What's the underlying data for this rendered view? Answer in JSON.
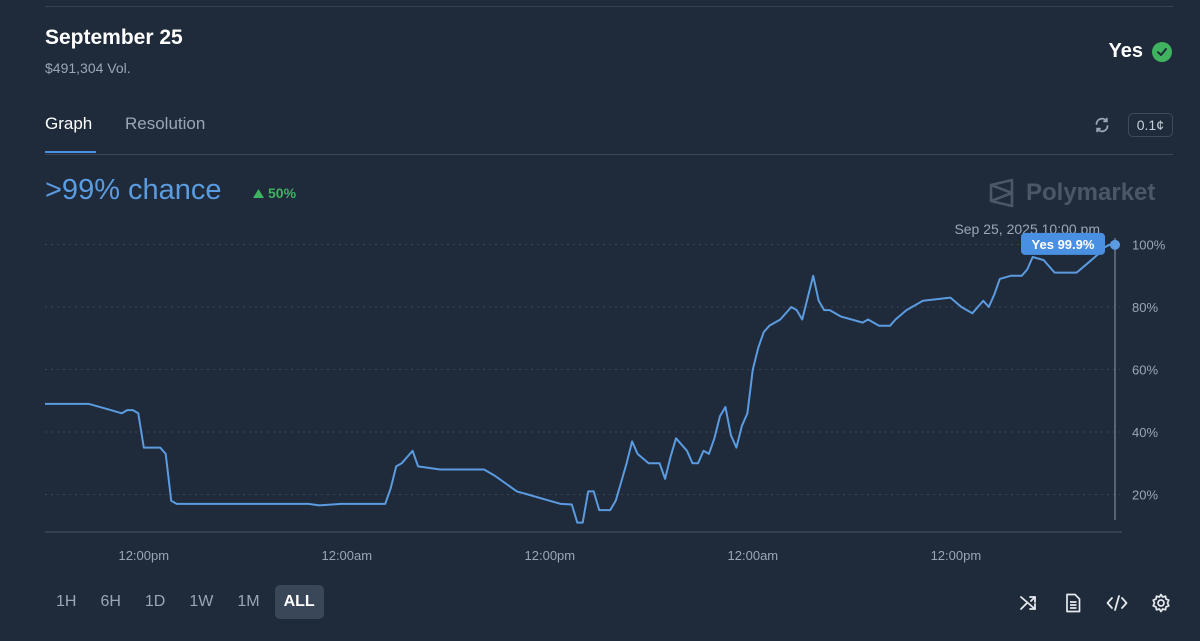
{
  "header": {
    "title": "September 25",
    "volume": "$491,304 Vol.",
    "outcome": "Yes"
  },
  "tabs": [
    {
      "label": "Graph",
      "active": true
    },
    {
      "label": "Resolution",
      "active": false
    }
  ],
  "toolbar": {
    "precision": "0.1¢"
  },
  "summary": {
    "chance": ">99% chance",
    "change": "50%"
  },
  "brand": "Polymarket",
  "colors": {
    "line": "#5b9be0",
    "up": "#3fb35f",
    "background": "#1f2a3a"
  },
  "ranges": [
    {
      "label": "1H",
      "active": false
    },
    {
      "label": "6H",
      "active": false
    },
    {
      "label": "1D",
      "active": false
    },
    {
      "label": "1W",
      "active": false
    },
    {
      "label": "1M",
      "active": false
    },
    {
      "label": "ALL",
      "active": true
    }
  ],
  "chart_data": {
    "type": "line",
    "series": [
      {
        "points": [
          [
            0,
            49
          ],
          [
            8,
            49
          ],
          [
            12,
            47
          ],
          [
            14,
            46
          ],
          [
            15,
            47
          ],
          [
            16,
            47
          ],
          [
            17,
            46
          ],
          [
            18,
            35
          ],
          [
            20,
            35
          ],
          [
            21,
            35
          ],
          [
            22,
            33
          ],
          [
            23,
            18
          ],
          [
            24,
            17
          ],
          [
            26,
            17
          ],
          [
            40,
            17
          ],
          [
            48,
            17
          ],
          [
            50,
            16.5
          ],
          [
            54,
            17
          ],
          [
            62,
            17
          ],
          [
            63,
            22
          ],
          [
            64,
            29
          ],
          [
            65,
            30
          ],
          [
            66,
            32
          ],
          [
            67,
            34
          ],
          [
            68,
            29
          ],
          [
            72,
            28
          ],
          [
            80,
            28
          ],
          [
            82,
            26
          ],
          [
            86,
            21
          ],
          [
            88,
            20
          ],
          [
            92,
            18
          ],
          [
            94,
            17
          ],
          [
            96,
            16.8
          ],
          [
            97,
            11
          ],
          [
            98,
            11
          ],
          [
            99,
            21
          ],
          [
            100,
            21
          ],
          [
            101,
            15
          ],
          [
            103,
            15
          ],
          [
            104,
            18
          ],
          [
            105,
            24
          ],
          [
            106,
            30
          ],
          [
            107,
            37
          ],
          [
            108,
            33
          ],
          [
            110,
            30
          ],
          [
            112,
            30
          ],
          [
            113,
            25
          ],
          [
            114,
            32
          ],
          [
            115,
            38
          ],
          [
            117,
            34
          ],
          [
            118,
            30
          ],
          [
            119,
            30
          ],
          [
            120,
            34
          ],
          [
            121,
            33
          ],
          [
            122,
            38
          ],
          [
            123,
            45
          ],
          [
            124,
            48
          ],
          [
            125,
            39
          ],
          [
            126,
            35
          ],
          [
            127,
            42
          ],
          [
            128,
            46
          ],
          [
            129,
            60
          ],
          [
            130,
            67
          ],
          [
            131,
            72
          ],
          [
            132,
            74
          ],
          [
            134,
            76
          ],
          [
            136,
            80
          ],
          [
            137,
            79
          ],
          [
            138,
            76
          ],
          [
            139,
            83
          ],
          [
            140,
            90
          ],
          [
            141,
            82
          ],
          [
            142,
            79
          ],
          [
            143,
            79
          ],
          [
            145,
            77
          ],
          [
            147,
            76
          ],
          [
            149,
            75
          ],
          [
            150,
            76
          ],
          [
            152,
            74
          ],
          [
            154,
            74
          ],
          [
            155,
            76
          ],
          [
            157,
            79
          ],
          [
            160,
            82
          ],
          [
            165,
            83
          ],
          [
            167,
            80
          ],
          [
            169,
            78
          ],
          [
            170,
            80
          ],
          [
            171,
            82
          ],
          [
            172,
            80
          ],
          [
            173,
            84
          ],
          [
            174,
            89
          ],
          [
            176,
            90
          ],
          [
            178,
            90
          ],
          [
            179,
            92
          ],
          [
            180,
            96
          ],
          [
            182,
            95
          ],
          [
            184,
            91
          ],
          [
            186,
            91
          ],
          [
            188,
            91
          ],
          [
            190,
            94
          ],
          [
            192,
            97
          ],
          [
            193,
            99
          ],
          [
            194,
            99.9
          ],
          [
            195,
            99.9
          ]
        ]
      }
    ],
    "xlim": [
      0,
      195
    ],
    "x_ticks": [
      {
        "pos": 18,
        "label": "12:00pm"
      },
      {
        "pos": 55,
        "label": "12:00am"
      },
      {
        "pos": 92,
        "label": "12:00pm"
      },
      {
        "pos": 129,
        "label": "12:00am"
      },
      {
        "pos": 166,
        "label": "12:00pm"
      }
    ],
    "ylim": [
      8,
      104
    ],
    "y_ticks": [
      {
        "value": 20,
        "label": "20%"
      },
      {
        "value": 40,
        "label": "40%"
      },
      {
        "value": 60,
        "label": "60%"
      },
      {
        "value": 80,
        "label": "80%"
      },
      {
        "value": 100,
        "label": "100%"
      }
    ],
    "hover": {
      "date": "Sep 25, 2025 10:00 pm",
      "label": "Yes 99.9%"
    },
    "grid": true
  }
}
